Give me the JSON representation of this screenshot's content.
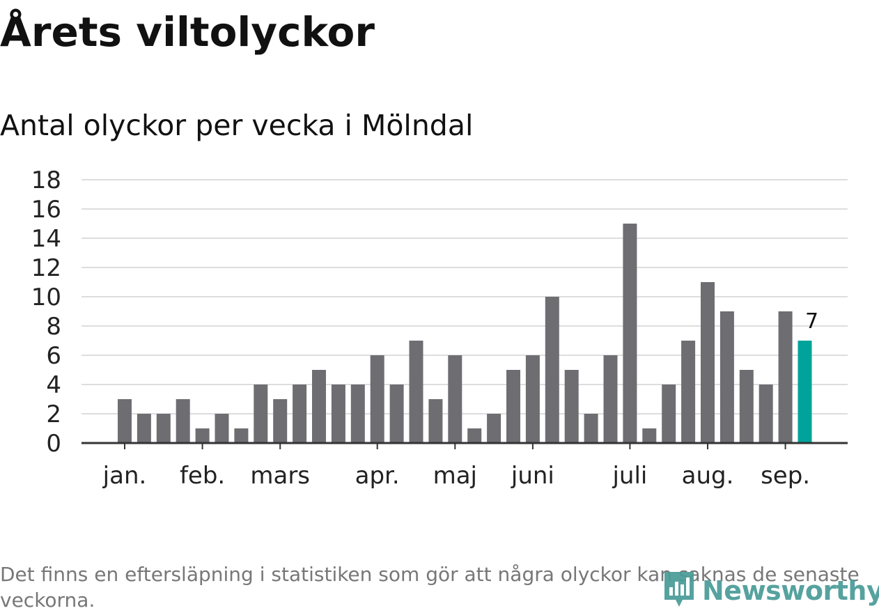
{
  "title": "Årets viltolyckor",
  "subtitle": "Antal olyckor per vecka i Mölndal",
  "footnote": "Det finns en eftersläpning i statistiken som gör att några olyckor kan saknas de senaste veckorna.",
  "brand": {
    "name": "Newsworthy",
    "icon": "newsworthy-logo-icon",
    "color": "#4a9c98"
  },
  "chart_data": {
    "type": "bar",
    "title": "Antal olyckor per vecka i Mölndal",
    "xlabel": "",
    "ylabel": "",
    "ylim": [
      0,
      18
    ],
    "yticks": [
      0,
      2,
      4,
      6,
      8,
      10,
      12,
      14,
      16,
      18
    ],
    "grid": true,
    "legend": "none",
    "month_labels": [
      {
        "label": "jan.",
        "week": 1
      },
      {
        "label": "feb.",
        "week": 5
      },
      {
        "label": "mars",
        "week": 9
      },
      {
        "label": "apr.",
        "week": 14
      },
      {
        "label": "maj",
        "week": 18
      },
      {
        "label": "juni",
        "week": 22
      },
      {
        "label": "juli",
        "week": 27
      },
      {
        "label": "aug.",
        "week": 31
      },
      {
        "label": "sep.",
        "week": 35
      }
    ],
    "weeks": [
      1,
      2,
      3,
      4,
      5,
      6,
      7,
      8,
      9,
      10,
      11,
      12,
      13,
      14,
      15,
      16,
      17,
      18,
      19,
      20,
      21,
      22,
      23,
      24,
      25,
      26,
      27,
      28,
      29,
      30,
      31,
      32,
      33,
      34,
      35,
      36
    ],
    "values": [
      3,
      2,
      2,
      3,
      1,
      2,
      1,
      4,
      3,
      4,
      5,
      4,
      4,
      6,
      4,
      7,
      3,
      6,
      1,
      2,
      5,
      6,
      10,
      5,
      2,
      6,
      15,
      1,
      4,
      7,
      11,
      9,
      5,
      4,
      9,
      7
    ],
    "highlight": {
      "week": 36,
      "value": 7,
      "label": "7"
    },
    "colors": {
      "bar": "#6e6d72",
      "highlight": "#00a39a",
      "grid": "#dddddd",
      "axis": "#333333",
      "tick_text": "#222222"
    }
  }
}
